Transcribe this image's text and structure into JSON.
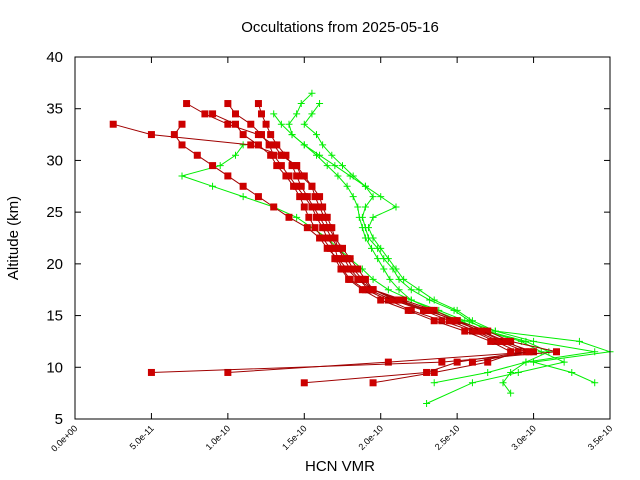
{
  "chart_data": {
    "type": "line",
    "title": "Occultations from 2025-05-16",
    "xlabel": "HCN VMR",
    "ylabel": "Altitude (km)",
    "xlim": [
      0,
      3.5e-10
    ],
    "ylim": [
      5,
      40
    ],
    "xticks": [
      0,
      5e-11,
      1e-10,
      1.5e-10,
      2e-10,
      2.5e-10,
      3e-10,
      3.5e-10
    ],
    "xtick_labels": [
      "0.0e+00",
      "5.0e-11",
      "1.0e-10",
      "1.5e-10",
      "2.0e-10",
      "2.5e-10",
      "3.0e-10",
      "3.5e-10"
    ],
    "yticks": [
      5,
      10,
      15,
      20,
      25,
      30,
      35,
      40
    ],
    "ytick_labels": [
      "5",
      "10",
      "15",
      "20",
      "25",
      "30",
      "35",
      "40"
    ],
    "grid": false,
    "colors": {
      "red": "#cc0000",
      "red_line": "#a00000",
      "green": "#00ee00"
    },
    "series": [
      {
        "color": "red",
        "marker": "square",
        "points": [
          [
            2.5e-11,
            33.5
          ],
          [
            5e-11,
            32.5
          ],
          [
            1.15e-10,
            31.5
          ],
          [
            1.35e-10,
            30.5
          ],
          [
            1.45e-10,
            29.5
          ],
          [
            1.5e-10,
            28.5
          ],
          [
            1.55e-10,
            27.5
          ],
          [
            1.6e-10,
            26.5
          ],
          [
            1.62e-10,
            25.5
          ],
          [
            1.65e-10,
            24.5
          ],
          [
            1.68e-10,
            23.5
          ],
          [
            1.7e-10,
            22.5
          ],
          [
            1.75e-10,
            21.5
          ],
          [
            1.8e-10,
            20.5
          ],
          [
            1.85e-10,
            19.5
          ],
          [
            1.9e-10,
            18.5
          ],
          [
            1.95e-10,
            17.5
          ],
          [
            2.1e-10,
            16.5
          ],
          [
            2.3e-10,
            15.5
          ],
          [
            2.5e-10,
            14.5
          ],
          [
            2.65e-10,
            13.5
          ],
          [
            2.8e-10,
            12.5
          ],
          [
            3e-10,
            11.5
          ],
          [
            2.05e-10,
            10.5
          ],
          [
            1e-10,
            9.5
          ]
        ]
      },
      {
        "color": "red",
        "marker": "square",
        "points": [
          [
            7.3e-11,
            35.5
          ],
          [
            8.5e-11,
            34.5
          ],
          [
            1e-10,
            33.5
          ],
          [
            1.2e-10,
            32.5
          ],
          [
            1.3e-10,
            31.5
          ],
          [
            1.35e-10,
            30.5
          ],
          [
            1.45e-10,
            29.5
          ],
          [
            1.48e-10,
            28.5
          ],
          [
            1.55e-10,
            27.5
          ],
          [
            1.57e-10,
            26.5
          ],
          [
            1.6e-10,
            25.5
          ],
          [
            1.63e-10,
            24.5
          ],
          [
            1.66e-10,
            23.5
          ],
          [
            1.7e-10,
            22.5
          ],
          [
            1.72e-10,
            21.5
          ],
          [
            1.78e-10,
            20.5
          ],
          [
            1.82e-10,
            19.5
          ],
          [
            1.88e-10,
            18.5
          ],
          [
            1.95e-10,
            17.5
          ],
          [
            2.15e-10,
            16.5
          ],
          [
            2.35e-10,
            15.5
          ],
          [
            2.5e-10,
            14.5
          ],
          [
            2.7e-10,
            13.5
          ],
          [
            2.85e-10,
            12.5
          ],
          [
            3.15e-10,
            11.5
          ],
          [
            2.4e-10,
            10.5
          ],
          [
            5e-11,
            9.5
          ]
        ]
      },
      {
        "color": "red",
        "marker": "square",
        "points": [
          [
            1e-10,
            35.5
          ],
          [
            1.05e-10,
            34.5
          ],
          [
            1.15e-10,
            33.5
          ],
          [
            1.22e-10,
            32.5
          ],
          [
            1.27e-10,
            31.5
          ],
          [
            1.3e-10,
            30.5
          ],
          [
            1.35e-10,
            29.5
          ],
          [
            1.4e-10,
            28.5
          ],
          [
            1.45e-10,
            27.5
          ],
          [
            1.5e-10,
            26.5
          ],
          [
            1.55e-10,
            25.5
          ],
          [
            1.58e-10,
            24.5
          ],
          [
            1.62e-10,
            23.5
          ],
          [
            1.65e-10,
            22.5
          ],
          [
            1.7e-10,
            21.5
          ],
          [
            1.72e-10,
            20.5
          ],
          [
            1.75e-10,
            19.5
          ],
          [
            1.8e-10,
            18.5
          ],
          [
            1.9e-10,
            17.5
          ],
          [
            2.05e-10,
            16.5
          ],
          [
            2.2e-10,
            15.5
          ],
          [
            2.4e-10,
            14.5
          ],
          [
            2.6e-10,
            13.5
          ],
          [
            2.75e-10,
            12.5
          ],
          [
            2.9e-10,
            11.5
          ],
          [
            2.7e-10,
            10.5
          ],
          [
            2.35e-10,
            9.5
          ],
          [
            1.95e-10,
            8.5
          ]
        ]
      },
      {
        "color": "red",
        "marker": "square",
        "points": [
          [
            1.2e-10,
            35.5
          ],
          [
            1.22e-10,
            34.5
          ],
          [
            1.25e-10,
            33.5
          ],
          [
            1.28e-10,
            32.5
          ],
          [
            1.32e-10,
            31.5
          ],
          [
            1.38e-10,
            30.5
          ],
          [
            1.42e-10,
            29.5
          ],
          [
            1.45e-10,
            28.5
          ],
          [
            1.48e-10,
            27.5
          ],
          [
            1.52e-10,
            26.5
          ],
          [
            1.56e-10,
            25.5
          ],
          [
            1.6e-10,
            24.5
          ],
          [
            1.64e-10,
            23.5
          ],
          [
            1.68e-10,
            22.5
          ],
          [
            1.72e-10,
            21.5
          ],
          [
            1.76e-10,
            20.5
          ],
          [
            1.8e-10,
            19.5
          ],
          [
            1.86e-10,
            18.5
          ],
          [
            1.92e-10,
            17.5
          ],
          [
            2.08e-10,
            16.5
          ],
          [
            2.28e-10,
            15.5
          ],
          [
            2.45e-10,
            14.5
          ],
          [
            2.62e-10,
            13.5
          ],
          [
            2.78e-10,
            12.5
          ],
          [
            2.95e-10,
            11.5
          ],
          [
            2.5e-10,
            10.5
          ],
          [
            2.3e-10,
            9.5
          ],
          [
            1.5e-10,
            8.5
          ]
        ]
      },
      {
        "color": "red",
        "marker": "square",
        "points": [
          [
            7e-11,
            33.5
          ],
          [
            6.5e-11,
            32.5
          ],
          [
            7e-11,
            31.5
          ],
          [
            8e-11,
            30.5
          ],
          [
            9e-11,
            29.5
          ],
          [
            1e-10,
            28.5
          ],
          [
            1.1e-10,
            27.5
          ],
          [
            1.2e-10,
            26.5
          ],
          [
            1.3e-10,
            25.5
          ],
          [
            1.4e-10,
            24.5
          ],
          [
            1.52e-10,
            23.5
          ],
          [
            1.6e-10,
            22.5
          ],
          [
            1.65e-10,
            21.5
          ],
          [
            1.72e-10,
            20.5
          ],
          [
            1.78e-10,
            19.5
          ],
          [
            1.85e-10,
            18.5
          ],
          [
            1.95e-10,
            17.5
          ],
          [
            2.12e-10,
            16.5
          ],
          [
            2.32e-10,
            15.5
          ],
          [
            2.48e-10,
            14.5
          ],
          [
            2.66e-10,
            13.5
          ],
          [
            2.82e-10,
            12.5
          ],
          [
            2.97e-10,
            11.5
          ],
          [
            2.6e-10,
            10.5
          ]
        ]
      },
      {
        "color": "red",
        "marker": "square",
        "points": [
          [
            9e-11,
            34.5
          ],
          [
            1.05e-10,
            33.5
          ],
          [
            1.1e-10,
            32.5
          ],
          [
            1.2e-10,
            31.5
          ],
          [
            1.28e-10,
            30.5
          ],
          [
            1.32e-10,
            29.5
          ],
          [
            1.38e-10,
            28.5
          ],
          [
            1.43e-10,
            27.5
          ],
          [
            1.47e-10,
            26.5
          ],
          [
            1.5e-10,
            25.5
          ],
          [
            1.53e-10,
            24.5
          ],
          [
            1.57e-10,
            23.5
          ],
          [
            1.62e-10,
            22.5
          ],
          [
            1.67e-10,
            21.5
          ],
          [
            1.7e-10,
            20.5
          ],
          [
            1.74e-10,
            19.5
          ],
          [
            1.79e-10,
            18.5
          ],
          [
            1.88e-10,
            17.5
          ],
          [
            2e-10,
            16.5
          ],
          [
            2.18e-10,
            15.5
          ],
          [
            2.35e-10,
            14.5
          ],
          [
            2.55e-10,
            13.5
          ],
          [
            2.72e-10,
            12.5
          ],
          [
            2.85e-10,
            11.5
          ]
        ]
      },
      {
        "color": "green",
        "marker": "plus",
        "points": [
          [
            1.55e-10,
            36.5
          ],
          [
            1.48e-10,
            35.5
          ],
          [
            1.45e-10,
            34.5
          ],
          [
            1.4e-10,
            33.5
          ],
          [
            1.42e-10,
            32.5
          ],
          [
            1.5e-10,
            31.5
          ],
          [
            1.6e-10,
            30.5
          ],
          [
            1.7e-10,
            29.5
          ],
          [
            1.8e-10,
            28.5
          ],
          [
            1.9e-10,
            27.5
          ],
          [
            2e-10,
            26.5
          ],
          [
            2.1e-10,
            25.5
          ],
          [
            1.95e-10,
            24.5
          ],
          [
            1.92e-10,
            23.5
          ],
          [
            1.95e-10,
            22.5
          ],
          [
            2e-10,
            21.5
          ],
          [
            2.05e-10,
            20.5
          ],
          [
            2.1e-10,
            19.5
          ],
          [
            2.15e-10,
            18.5
          ],
          [
            2.25e-10,
            17.5
          ],
          [
            2.35e-10,
            16.5
          ],
          [
            2.5e-10,
            15.5
          ],
          [
            2.6e-10,
            14.5
          ],
          [
            2.75e-10,
            13.5
          ],
          [
            3.3e-10,
            12.5
          ],
          [
            3.5e-10,
            11.5
          ],
          [
            3e-10,
            10.5
          ],
          [
            3.25e-10,
            9.5
          ],
          [
            3.4e-10,
            8.5
          ]
        ]
      },
      {
        "color": "green",
        "marker": "plus",
        "points": [
          [
            1.6e-10,
            35.5
          ],
          [
            1.55e-10,
            34.5
          ],
          [
            1.5e-10,
            33.5
          ],
          [
            1.58e-10,
            32.5
          ],
          [
            1.62e-10,
            31.5
          ],
          [
            1.68e-10,
            30.5
          ],
          [
            1.75e-10,
            29.5
          ],
          [
            1.82e-10,
            28.5
          ],
          [
            1.9e-10,
            27.5
          ],
          [
            1.95e-10,
            26.5
          ],
          [
            1.9e-10,
            25.5
          ],
          [
            1.88e-10,
            24.5
          ],
          [
            1.9e-10,
            23.5
          ],
          [
            1.92e-10,
            22.5
          ],
          [
            1.98e-10,
            21.5
          ],
          [
            2.02e-10,
            20.5
          ],
          [
            2.08e-10,
            19.5
          ],
          [
            2.12e-10,
            18.5
          ],
          [
            2.2e-10,
            17.5
          ],
          [
            2.32e-10,
            16.5
          ],
          [
            2.48e-10,
            15.5
          ],
          [
            2.58e-10,
            14.5
          ],
          [
            2.7e-10,
            13.5
          ],
          [
            2.95e-10,
            12.5
          ],
          [
            3.1e-10,
            11.5
          ],
          [
            2.95e-10,
            10.5
          ],
          [
            2.85e-10,
            9.5
          ],
          [
            2.8e-10,
            8.5
          ],
          [
            2.85e-10,
            7.5
          ]
        ]
      },
      {
        "color": "green",
        "marker": "plus",
        "points": [
          [
            1.3e-10,
            34.5
          ],
          [
            1.35e-10,
            33.5
          ],
          [
            1.42e-10,
            32.5
          ],
          [
            1.5e-10,
            31.5
          ],
          [
            1.58e-10,
            30.5
          ],
          [
            1.65e-10,
            29.5
          ],
          [
            1.72e-10,
            28.5
          ],
          [
            1.78e-10,
            27.5
          ],
          [
            1.82e-10,
            26.5
          ],
          [
            1.85e-10,
            25.5
          ],
          [
            1.86e-10,
            24.5
          ],
          [
            1.88e-10,
            23.5
          ],
          [
            1.9e-10,
            22.5
          ],
          [
            1.94e-10,
            21.5
          ],
          [
            1.98e-10,
            20.5
          ],
          [
            2.02e-10,
            19.5
          ],
          [
            2.06e-10,
            18.5
          ],
          [
            2.12e-10,
            17.5
          ],
          [
            2.2e-10,
            16.5
          ],
          [
            2.35e-10,
            15.5
          ],
          [
            2.52e-10,
            14.5
          ],
          [
            2.68e-10,
            13.5
          ],
          [
            2.92e-10,
            12.5
          ],
          [
            3.05e-10,
            11.5
          ],
          [
            3.2e-10,
            10.5
          ],
          [
            2.9e-10,
            9.5
          ],
          [
            2.6e-10,
            8.5
          ],
          [
            2.3e-10,
            6.5
          ]
        ]
      },
      {
        "color": "green",
        "marker": "plus",
        "points": [
          [
            1.1e-10,
            31.5
          ],
          [
            1.05e-10,
            30.5
          ],
          [
            9.5e-11,
            29.5
          ],
          [
            7e-11,
            28.5
          ],
          [
            9e-11,
            27.5
          ],
          [
            1.1e-10,
            26.5
          ],
          [
            1.3e-10,
            25.5
          ],
          [
            1.45e-10,
            24.5
          ],
          [
            1.55e-10,
            23.5
          ],
          [
            1.65e-10,
            22.5
          ],
          [
            1.72e-10,
            21.5
          ],
          [
            1.8e-10,
            20.5
          ],
          [
            1.88e-10,
            19.5
          ],
          [
            1.95e-10,
            18.5
          ],
          [
            2.05e-10,
            17.5
          ],
          [
            2.2e-10,
            16.5
          ],
          [
            2.38e-10,
            15.5
          ],
          [
            2.55e-10,
            14.5
          ],
          [
            2.75e-10,
            13.5
          ],
          [
            3e-10,
            12.5
          ],
          [
            3.4e-10,
            11.5
          ],
          [
            2.95e-10,
            10.5
          ],
          [
            2.7e-10,
            9.5
          ],
          [
            2.35e-10,
            8.5
          ]
        ]
      }
    ]
  }
}
